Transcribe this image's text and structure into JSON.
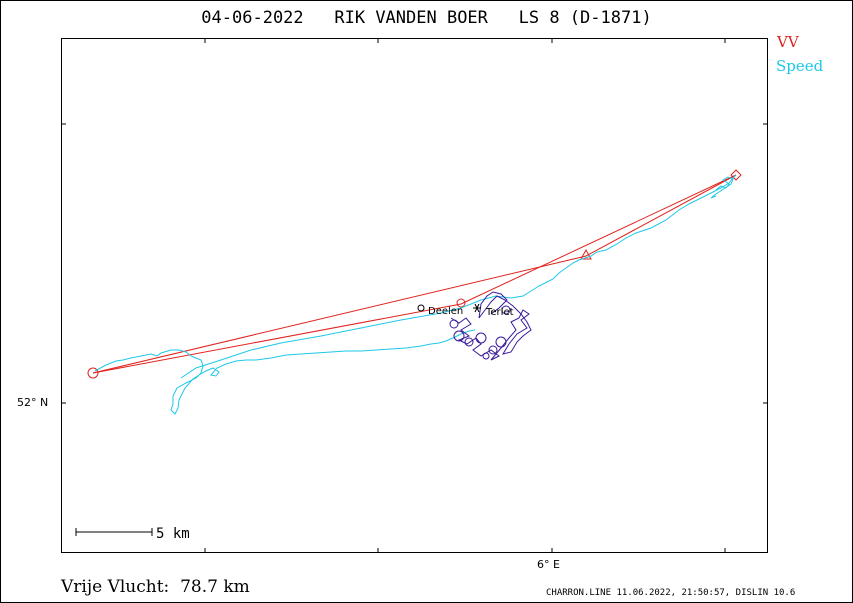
{
  "title": {
    "date": "04-06-2022",
    "pilot": "RIK VANDEN BOER",
    "glider": "LS 8 (D-1871)"
  },
  "legend": {
    "items": [
      {
        "label": "VV",
        "color": "#e0231e"
      },
      {
        "label": "Speed",
        "color": "#1ec8e8"
      }
    ]
  },
  "axes": {
    "lat_label": "52° N",
    "lon_label": "6° E"
  },
  "scale": {
    "label": "5 km"
  },
  "places": {
    "deelen": "Deelen",
    "terlet": "Terlet"
  },
  "summary": {
    "label": "Vrije Vlucht:",
    "value": "78.7 km"
  },
  "footer": "CHARRON.LINE 11.06.2022, 21:50:57, DISLIN 10.6",
  "colors": {
    "task": "#e0231e",
    "track": "#1ec8e8",
    "local_track": "#3a1a9a"
  }
}
